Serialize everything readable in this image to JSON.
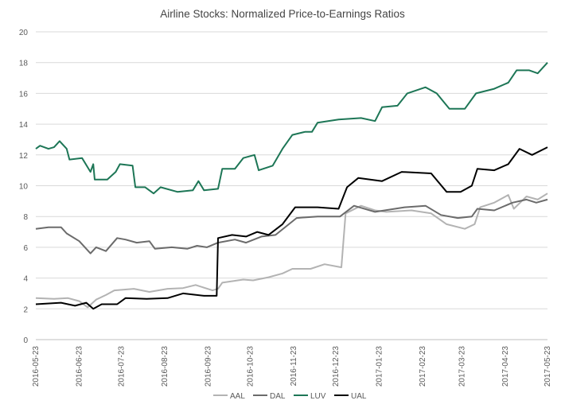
{
  "chart_data": {
    "type": "line",
    "title": "Airline Stocks: Normalized Price-to-Earnings Ratios",
    "xlabel": "",
    "ylabel": "",
    "ylim": [
      0,
      20
    ],
    "yticks": [
      0,
      2,
      4,
      6,
      8,
      10,
      12,
      14,
      16,
      18,
      20
    ],
    "xlim": [
      "2016-05-23",
      "2017-05-23"
    ],
    "xticks": [
      "2016-05-23",
      "2016-06-23",
      "2016-07-23",
      "2016-08-23",
      "2016-09-23",
      "2016-10-23",
      "2016-11-23",
      "2016-12-23",
      "2017-01-23",
      "2017-02-23",
      "2017-03-23",
      "2017-04-23",
      "2017-05-23"
    ],
    "grid": true,
    "legend_position": "bottom",
    "series": [
      {
        "name": "AAL",
        "color": "#b3b3b3",
        "points": [
          [
            "2016-05-23",
            2.7
          ],
          [
            "2016-06-05",
            2.65
          ],
          [
            "2016-06-15",
            2.7
          ],
          [
            "2016-06-23",
            2.5
          ],
          [
            "2016-06-29",
            2.1
          ],
          [
            "2016-07-05",
            2.6
          ],
          [
            "2016-07-12",
            2.9
          ],
          [
            "2016-07-18",
            3.2
          ],
          [
            "2016-08-01",
            3.3
          ],
          [
            "2016-08-12",
            3.1
          ],
          [
            "2016-08-25",
            3.3
          ],
          [
            "2016-09-05",
            3.35
          ],
          [
            "2016-09-14",
            3.55
          ],
          [
            "2016-09-26",
            3.2
          ],
          [
            "2016-09-30",
            3.3
          ],
          [
            "2016-10-03",
            3.7
          ],
          [
            "2016-10-18",
            3.9
          ],
          [
            "2016-10-25",
            3.85
          ],
          [
            "2016-11-05",
            4.05
          ],
          [
            "2016-11-15",
            4.3
          ],
          [
            "2016-11-22",
            4.6
          ],
          [
            "2016-12-05",
            4.6
          ],
          [
            "2016-12-15",
            4.9
          ],
          [
            "2016-12-27",
            4.7
          ],
          [
            "2016-12-30",
            8.2
          ],
          [
            "2017-01-10",
            8.7
          ],
          [
            "2017-01-20",
            8.4
          ],
          [
            "2017-01-28",
            8.3
          ],
          [
            "2017-02-15",
            8.4
          ],
          [
            "2017-03-01",
            8.2
          ],
          [
            "2017-03-12",
            7.5
          ],
          [
            "2017-03-25",
            7.2
          ],
          [
            "2017-04-01",
            7.5
          ],
          [
            "2017-04-05",
            8.6
          ],
          [
            "2017-04-15",
            8.9
          ],
          [
            "2017-04-25",
            9.4
          ],
          [
            "2017-04-29",
            8.5
          ],
          [
            "2017-05-08",
            9.3
          ],
          [
            "2017-05-16",
            9.1
          ],
          [
            "2017-05-23",
            9.5
          ]
        ]
      },
      {
        "name": "DAL",
        "color": "#6b6b6b",
        "points": [
          [
            "2016-05-23",
            7.2
          ],
          [
            "2016-06-01",
            7.3
          ],
          [
            "2016-06-10",
            7.3
          ],
          [
            "2016-06-14",
            6.9
          ],
          [
            "2016-06-23",
            6.4
          ],
          [
            "2016-06-28",
            5.9
          ],
          [
            "2016-07-01",
            5.6
          ],
          [
            "2016-07-05",
            6.0
          ],
          [
            "2016-07-12",
            5.75
          ],
          [
            "2016-07-20",
            6.6
          ],
          [
            "2016-07-26",
            6.5
          ],
          [
            "2016-08-03",
            6.3
          ],
          [
            "2016-08-12",
            6.4
          ],
          [
            "2016-08-16",
            5.9
          ],
          [
            "2016-08-28",
            6.0
          ],
          [
            "2016-09-08",
            5.9
          ],
          [
            "2016-09-15",
            6.1
          ],
          [
            "2016-09-22",
            6.0
          ],
          [
            "2016-09-30",
            6.3
          ],
          [
            "2016-10-12",
            6.5
          ],
          [
            "2016-10-20",
            6.3
          ],
          [
            "2016-10-31",
            6.7
          ],
          [
            "2016-11-10",
            6.8
          ],
          [
            "2016-11-25",
            7.9
          ],
          [
            "2016-12-10",
            8.0
          ],
          [
            "2016-12-26",
            8.0
          ],
          [
            "2017-01-05",
            8.7
          ],
          [
            "2017-01-20",
            8.3
          ],
          [
            "2017-02-10",
            8.6
          ],
          [
            "2017-02-25",
            8.7
          ],
          [
            "2017-03-08",
            8.1
          ],
          [
            "2017-03-20",
            7.9
          ],
          [
            "2017-03-30",
            8.0
          ],
          [
            "2017-04-03",
            8.5
          ],
          [
            "2017-04-15",
            8.4
          ],
          [
            "2017-04-28",
            8.9
          ],
          [
            "2017-05-08",
            9.1
          ],
          [
            "2017-05-15",
            8.9
          ],
          [
            "2017-05-23",
            9.1
          ]
        ]
      },
      {
        "name": "LUV",
        "color": "#1d7656",
        "points": [
          [
            "2016-05-23",
            12.4
          ],
          [
            "2016-05-26",
            12.6
          ],
          [
            "2016-06-01",
            12.4
          ],
          [
            "2016-06-05",
            12.5
          ],
          [
            "2016-06-09",
            12.9
          ],
          [
            "2016-06-14",
            12.4
          ],
          [
            "2016-06-16",
            11.7
          ],
          [
            "2016-06-25",
            11.8
          ],
          [
            "2016-07-01",
            10.9
          ],
          [
            "2016-07-03",
            11.4
          ],
          [
            "2016-07-04",
            10.4
          ],
          [
            "2016-07-13",
            10.4
          ],
          [
            "2016-07-19",
            10.9
          ],
          [
            "2016-07-22",
            11.4
          ],
          [
            "2016-07-31",
            11.3
          ],
          [
            "2016-08-02",
            9.9
          ],
          [
            "2016-08-09",
            9.9
          ],
          [
            "2016-08-15",
            9.5
          ],
          [
            "2016-08-20",
            9.9
          ],
          [
            "2016-09-01",
            9.6
          ],
          [
            "2016-09-12",
            9.7
          ],
          [
            "2016-09-16",
            10.3
          ],
          [
            "2016-09-20",
            9.7
          ],
          [
            "2016-09-30",
            9.8
          ],
          [
            "2016-10-03",
            11.1
          ],
          [
            "2016-10-12",
            11.1
          ],
          [
            "2016-10-18",
            11.8
          ],
          [
            "2016-10-26",
            12.0
          ],
          [
            "2016-10-29",
            11.0
          ],
          [
            "2016-11-08",
            11.3
          ],
          [
            "2016-11-15",
            12.4
          ],
          [
            "2016-11-22",
            13.3
          ],
          [
            "2016-12-01",
            13.5
          ],
          [
            "2016-12-06",
            13.5
          ],
          [
            "2016-12-10",
            14.1
          ],
          [
            "2016-12-25",
            14.3
          ],
          [
            "2017-01-10",
            14.4
          ],
          [
            "2017-01-20",
            14.2
          ],
          [
            "2017-01-25",
            15.1
          ],
          [
            "2017-02-05",
            15.2
          ],
          [
            "2017-02-12",
            16.0
          ],
          [
            "2017-02-25",
            16.4
          ],
          [
            "2017-03-05",
            16.0
          ],
          [
            "2017-03-14",
            15.0
          ],
          [
            "2017-03-25",
            15.0
          ],
          [
            "2017-04-02",
            16.0
          ],
          [
            "2017-04-15",
            16.3
          ],
          [
            "2017-04-25",
            16.7
          ],
          [
            "2017-05-01",
            17.5
          ],
          [
            "2017-05-10",
            17.5
          ],
          [
            "2017-05-16",
            17.3
          ],
          [
            "2017-05-23",
            18.0
          ]
        ]
      },
      {
        "name": "UAL",
        "color": "#000000",
        "points": [
          [
            "2016-05-23",
            2.3
          ],
          [
            "2016-06-10",
            2.4
          ],
          [
            "2016-06-20",
            2.2
          ],
          [
            "2016-06-28",
            2.4
          ],
          [
            "2016-07-03",
            2.0
          ],
          [
            "2016-07-09",
            2.3
          ],
          [
            "2016-07-20",
            2.3
          ],
          [
            "2016-07-26",
            2.7
          ],
          [
            "2016-08-10",
            2.65
          ],
          [
            "2016-08-25",
            2.7
          ],
          [
            "2016-09-05",
            3.0
          ],
          [
            "2016-09-20",
            2.85
          ],
          [
            "2016-09-29",
            2.85
          ],
          [
            "2016-09-30",
            6.6
          ],
          [
            "2016-10-10",
            6.8
          ],
          [
            "2016-10-20",
            6.7
          ],
          [
            "2016-10-28",
            7.0
          ],
          [
            "2016-11-05",
            6.8
          ],
          [
            "2016-11-15",
            7.5
          ],
          [
            "2016-11-24",
            8.6
          ],
          [
            "2016-12-10",
            8.6
          ],
          [
            "2016-12-25",
            8.5
          ],
          [
            "2016-12-31",
            9.9
          ],
          [
            "2017-01-08",
            10.5
          ],
          [
            "2017-01-25",
            10.3
          ],
          [
            "2017-02-08",
            10.9
          ],
          [
            "2017-03-01",
            10.8
          ],
          [
            "2017-03-12",
            9.6
          ],
          [
            "2017-03-22",
            9.6
          ],
          [
            "2017-03-30",
            10.0
          ],
          [
            "2017-04-03",
            11.1
          ],
          [
            "2017-04-15",
            11.0
          ],
          [
            "2017-04-25",
            11.4
          ],
          [
            "2017-05-03",
            12.4
          ],
          [
            "2017-05-12",
            12.0
          ],
          [
            "2017-05-23",
            12.5
          ]
        ]
      }
    ]
  }
}
